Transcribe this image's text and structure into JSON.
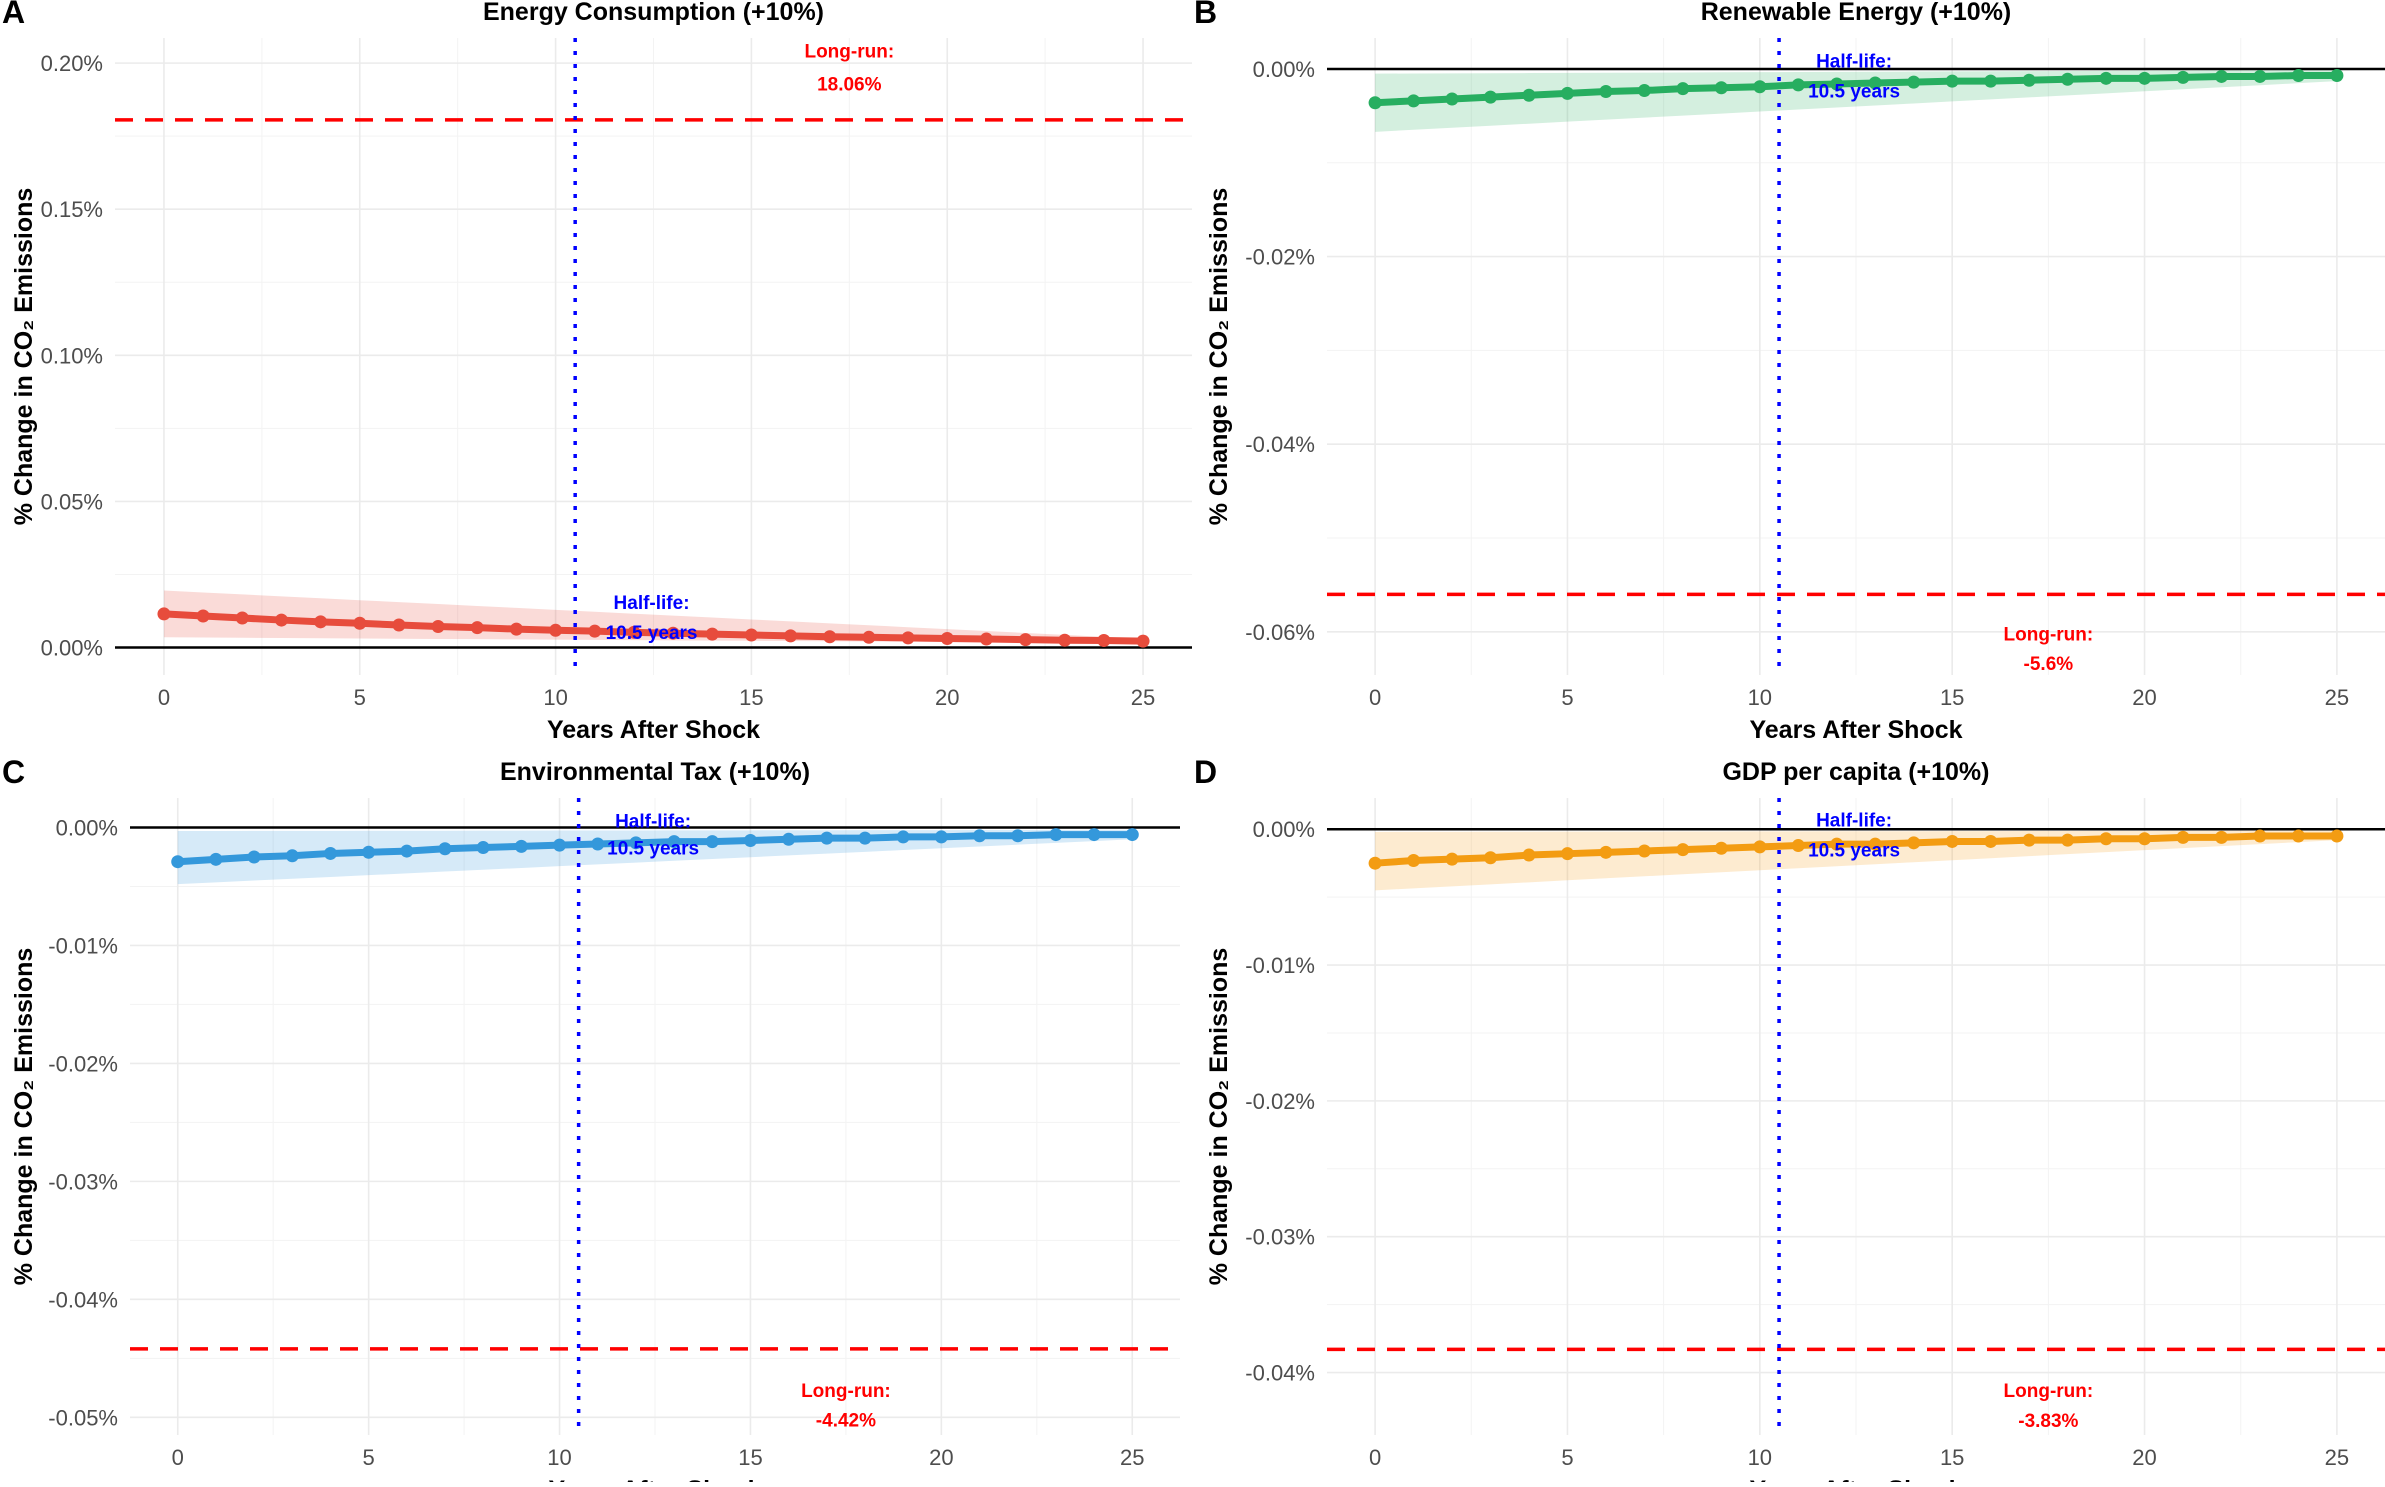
{
  "chart_data": [
    {
      "type": "line",
      "panel_label": "A",
      "title": "Energy Consumption (+10%)",
      "xlabel": "Years After Shock",
      "ylabel": "% Change in CO₂ Emissions",
      "color": "#E74C3C",
      "ylim": [
        -0.0094,
        0.2086
      ],
      "xlim": [
        -1.25,
        26.25
      ],
      "x_ticks": [
        0,
        5,
        10,
        15,
        20,
        25
      ],
      "x_tick_labels": [
        "0",
        "5",
        "10",
        "15",
        "20",
        "25"
      ],
      "y_ticks": [
        0,
        0.05,
        0.1,
        0.15,
        0.2
      ],
      "y_tick_labels": [
        "0.00%",
        "0.05%",
        "0.10%",
        "0.15%",
        "0.20%"
      ],
      "x": [
        0,
        1,
        2,
        3,
        4,
        5,
        6,
        7,
        8,
        9,
        10,
        11,
        12,
        13,
        14,
        15,
        16,
        17,
        18,
        19,
        20,
        21,
        22,
        23,
        24,
        25
      ],
      "values": [
        0.0115,
        0.0108,
        0.0101,
        0.0094,
        0.0088,
        0.0083,
        0.0077,
        0.0072,
        0.0068,
        0.0063,
        0.0059,
        0.0056,
        0.0052,
        0.0049,
        0.0046,
        0.0043,
        0.004,
        0.0037,
        0.0035,
        0.0033,
        0.0031,
        0.0029,
        0.0027,
        0.0025,
        0.0024,
        0.0022
      ],
      "ci": {
        "x": [
          0,
          25
        ],
        "lower": [
          0.0035,
          0.0015
        ],
        "upper": [
          0.0195,
          0.003
        ]
      },
      "half_life": {
        "x": 10.5,
        "label1": "Half-life:",
        "label2": "10.5 years",
        "label_x": 12.45,
        "label_y": [
          0.0155,
          0.0053
        ]
      },
      "long_run": {
        "y": 0.1806,
        "label1": "Long-run:",
        "label2": "18.06%",
        "label_x": 17.5,
        "label_y": [
          0.2044,
          0.193
        ]
      }
    },
    {
      "type": "line",
      "panel_label": "B",
      "title": "Renewable Energy (+10%)",
      "xlabel": "Years After Shock",
      "ylabel": "% Change in CO₂ Emissions",
      "color": "#27AE60",
      "ylim": [
        -0.0646,
        0.0033
      ],
      "xlim": [
        -1.25,
        26.25
      ],
      "x_ticks": [
        0,
        5,
        10,
        15,
        20,
        25
      ],
      "x_tick_labels": [
        "0",
        "5",
        "10",
        "15",
        "20",
        "25"
      ],
      "y_ticks": [
        0,
        -0.02,
        -0.04,
        -0.06
      ],
      "y_tick_labels": [
        "0.00%",
        "-0.02%",
        "-0.04%",
        "-0.06%"
      ],
      "x": [
        0,
        1,
        2,
        3,
        4,
        5,
        6,
        7,
        8,
        9,
        10,
        11,
        12,
        13,
        14,
        15,
        16,
        17,
        18,
        19,
        20,
        21,
        22,
        23,
        24,
        25
      ],
      "values": [
        -0.0036,
        -0.0034,
        -0.0032,
        -0.003,
        -0.0028,
        -0.0026,
        -0.0024,
        -0.0023,
        -0.0021,
        -0.002,
        -0.0019,
        -0.0017,
        -0.0016,
        -0.0015,
        -0.0014,
        -0.0013,
        -0.0013,
        -0.0012,
        -0.0011,
        -0.001,
        -0.001,
        -0.0009,
        -0.0008,
        -0.0008,
        -0.0007,
        -0.0007
      ],
      "ci": {
        "x": [
          0,
          25
        ],
        "lower": [
          -0.0067,
          -0.0013
        ],
        "upper": [
          -0.0005,
          -0.0001
        ]
      },
      "half_life": {
        "x": 10.5,
        "label1": "Half-life:",
        "label2": "10.5 years",
        "label_x": 12.45,
        "label_y": [
          0.0009,
          -0.0023
        ]
      },
      "long_run": {
        "y": -0.056,
        "label1": "Long-run:",
        "label2": "-5.6%",
        "label_x": 17.5,
        "label_y": [
          -0.0602,
          -0.0633
        ]
      }
    },
    {
      "type": "line",
      "panel_label": "C",
      "title": "Environmental Tax (+10%)",
      "xlabel": "Years After Shock",
      "ylabel": "% Change in CO₂ Emissions",
      "color": "#3498DB",
      "ylim": [
        -0.0515,
        0.0025
      ],
      "xlim": [
        -1.25,
        26.25
      ],
      "x_ticks": [
        0,
        5,
        10,
        15,
        20,
        25
      ],
      "x_tick_labels": [
        "0",
        "5",
        "10",
        "15",
        "20",
        "25"
      ],
      "y_ticks": [
        0,
        -0.01,
        -0.02,
        -0.03,
        -0.04,
        -0.05
      ],
      "y_tick_labels": [
        "0.00%",
        "-0.01%",
        "-0.02%",
        "-0.03%",
        "-0.04%",
        "-0.05%"
      ],
      "x": [
        0,
        1,
        2,
        3,
        4,
        5,
        6,
        7,
        8,
        9,
        10,
        11,
        12,
        13,
        14,
        15,
        16,
        17,
        18,
        19,
        20,
        21,
        22,
        23,
        24,
        25
      ],
      "values": [
        -0.0029,
        -0.0027,
        -0.0025,
        -0.0024,
        -0.0022,
        -0.0021,
        -0.002,
        -0.0018,
        -0.0017,
        -0.0016,
        -0.0015,
        -0.0014,
        -0.0013,
        -0.0012,
        -0.0012,
        -0.0011,
        -0.001,
        -0.0009,
        -0.0009,
        -0.0008,
        -0.0008,
        -0.0007,
        -0.0007,
        -0.0006,
        -0.0006,
        -0.0006
      ],
      "ci": {
        "x": [
          0,
          25
        ],
        "lower": [
          -0.0048,
          -0.001
        ],
        "upper": [
          -0.0003,
          -0.0002
        ]
      },
      "half_life": {
        "x": 10.5,
        "label1": "Half-life:",
        "label2": "10.5 years",
        "label_x": 12.45,
        "label_y": [
          0.0006,
          -0.0017
        ]
      },
      "long_run": {
        "y": -0.0442,
        "label1": "Long-run:",
        "label2": "-4.42%",
        "label_x": 17.5,
        "label_y": [
          -0.0477,
          -0.0502
        ]
      }
    },
    {
      "type": "line",
      "panel_label": "D",
      "title": "GDP per capita (+10%)",
      "xlabel": "Years After Shock",
      "ylabel": "% Change in CO₂ Emissions",
      "color": "#F39C12",
      "ylim": [
        -0.0446,
        0.0023
      ],
      "xlim": [
        -1.25,
        26.25
      ],
      "x_ticks": [
        0,
        5,
        10,
        15,
        20,
        25
      ],
      "x_tick_labels": [
        "0",
        "5",
        "10",
        "15",
        "20",
        "25"
      ],
      "y_ticks": [
        0,
        -0.01,
        -0.02,
        -0.03,
        -0.04
      ],
      "y_tick_labels": [
        "0.00%",
        "-0.01%",
        "-0.02%",
        "-0.03%",
        "-0.04%"
      ],
      "x": [
        0,
        1,
        2,
        3,
        4,
        5,
        6,
        7,
        8,
        9,
        10,
        11,
        12,
        13,
        14,
        15,
        16,
        17,
        18,
        19,
        20,
        21,
        22,
        23,
        24,
        25
      ],
      "values": [
        -0.0025,
        -0.0023,
        -0.0022,
        -0.0021,
        -0.0019,
        -0.0018,
        -0.0017,
        -0.0016,
        -0.0015,
        -0.0014,
        -0.0013,
        -0.0012,
        -0.0011,
        -0.0011,
        -0.001,
        -0.0009,
        -0.0009,
        -0.0008,
        -0.0008,
        -0.0007,
        -0.0007,
        -0.0006,
        -0.0006,
        -0.0005,
        -0.0005,
        -0.0005
      ],
      "ci": {
        "x": [
          0,
          25
        ],
        "lower": [
          -0.0045,
          -0.0008
        ],
        "upper": [
          -0.0002,
          -0.0001
        ]
      },
      "half_life": {
        "x": 10.5,
        "label1": "Half-life:",
        "label2": "10.5 years",
        "label_x": 12.45,
        "label_y": [
          0.0007,
          -0.0015
        ]
      },
      "long_run": {
        "y": -0.0383,
        "label1": "Long-run:",
        "label2": "-3.83%",
        "label_x": 17.5,
        "label_y": [
          -0.0413,
          -0.0435
        ]
      }
    }
  ],
  "colors": {
    "long_run": "#FF0000",
    "half_life": "#0000FF",
    "zero_line": "#000000",
    "grid": "#EBEBEB"
  }
}
